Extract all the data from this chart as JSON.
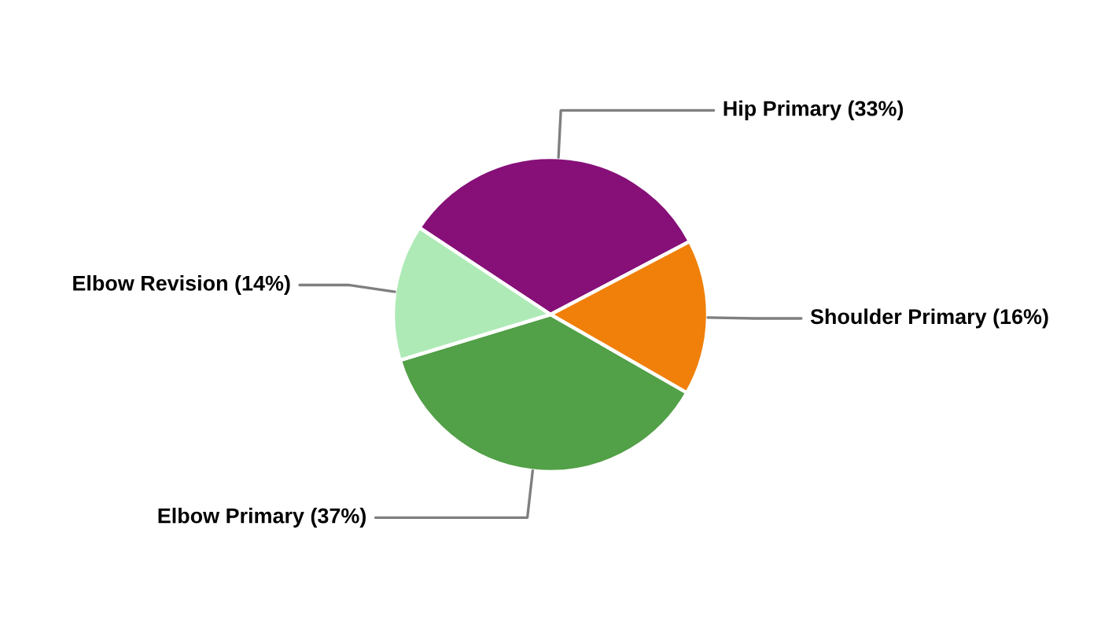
{
  "chart_data": {
    "type": "pie",
    "categories": [
      "Hip Primary",
      "Shoulder Primary",
      "Elbow Primary",
      "Elbow Revision"
    ],
    "values": [
      33,
      16,
      37,
      14
    ],
    "colors": [
      "#861078",
      "#f0800a",
      "#52a047",
      "#aeeab6"
    ],
    "value_labels": [
      "(33%)",
      "(16%)",
      "(37%)",
      "(14%)"
    ]
  }
}
